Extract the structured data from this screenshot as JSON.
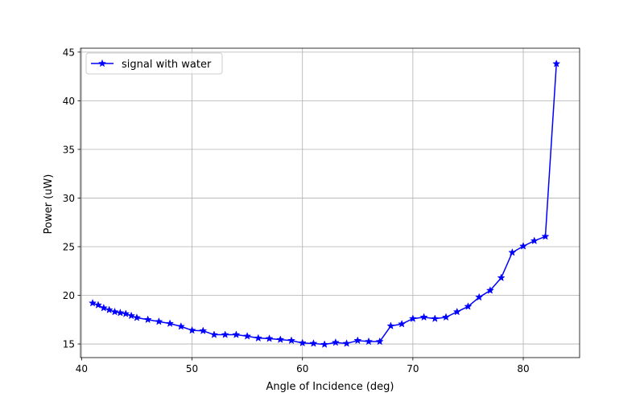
{
  "chart_data": {
    "type": "line",
    "title": "",
    "xlabel": "Angle of Incidence (deg)",
    "ylabel": "Power (uW)",
    "xlim": [
      39.9,
      85.1
    ],
    "ylim": [
      13.6,
      45.4
    ],
    "xticks": [
      40,
      50,
      60,
      70,
      80
    ],
    "yticks": [
      15,
      20,
      25,
      30,
      35,
      40,
      45
    ],
    "grid": true,
    "legend_position": "top-left",
    "series": [
      {
        "name": "signal with water",
        "color": "#0000ff",
        "marker": "star",
        "x": [
          41,
          41.5,
          42,
          42.5,
          43,
          43.5,
          44,
          44.5,
          45,
          46,
          47,
          48,
          49,
          50,
          51,
          52,
          53,
          54,
          55,
          56,
          57,
          58,
          59,
          60,
          61,
          62,
          63,
          64,
          65,
          66,
          67,
          68,
          69,
          70,
          71,
          72,
          73,
          74,
          75,
          76,
          77,
          78,
          79,
          80,
          81,
          82,
          83
        ],
        "y": [
          19.2,
          19.0,
          18.7,
          18.5,
          18.3,
          18.2,
          18.1,
          17.9,
          17.7,
          17.5,
          17.3,
          17.1,
          16.8,
          16.4,
          16.35,
          15.95,
          15.95,
          15.95,
          15.8,
          15.6,
          15.55,
          15.45,
          15.35,
          15.1,
          15.05,
          14.95,
          15.15,
          15.05,
          15.35,
          15.25,
          15.25,
          16.85,
          17.05,
          17.6,
          17.75,
          17.6,
          17.75,
          18.3,
          18.85,
          19.8,
          20.5,
          21.8,
          24.4,
          25.05,
          25.6,
          26.05,
          43.8
        ]
      }
    ]
  }
}
